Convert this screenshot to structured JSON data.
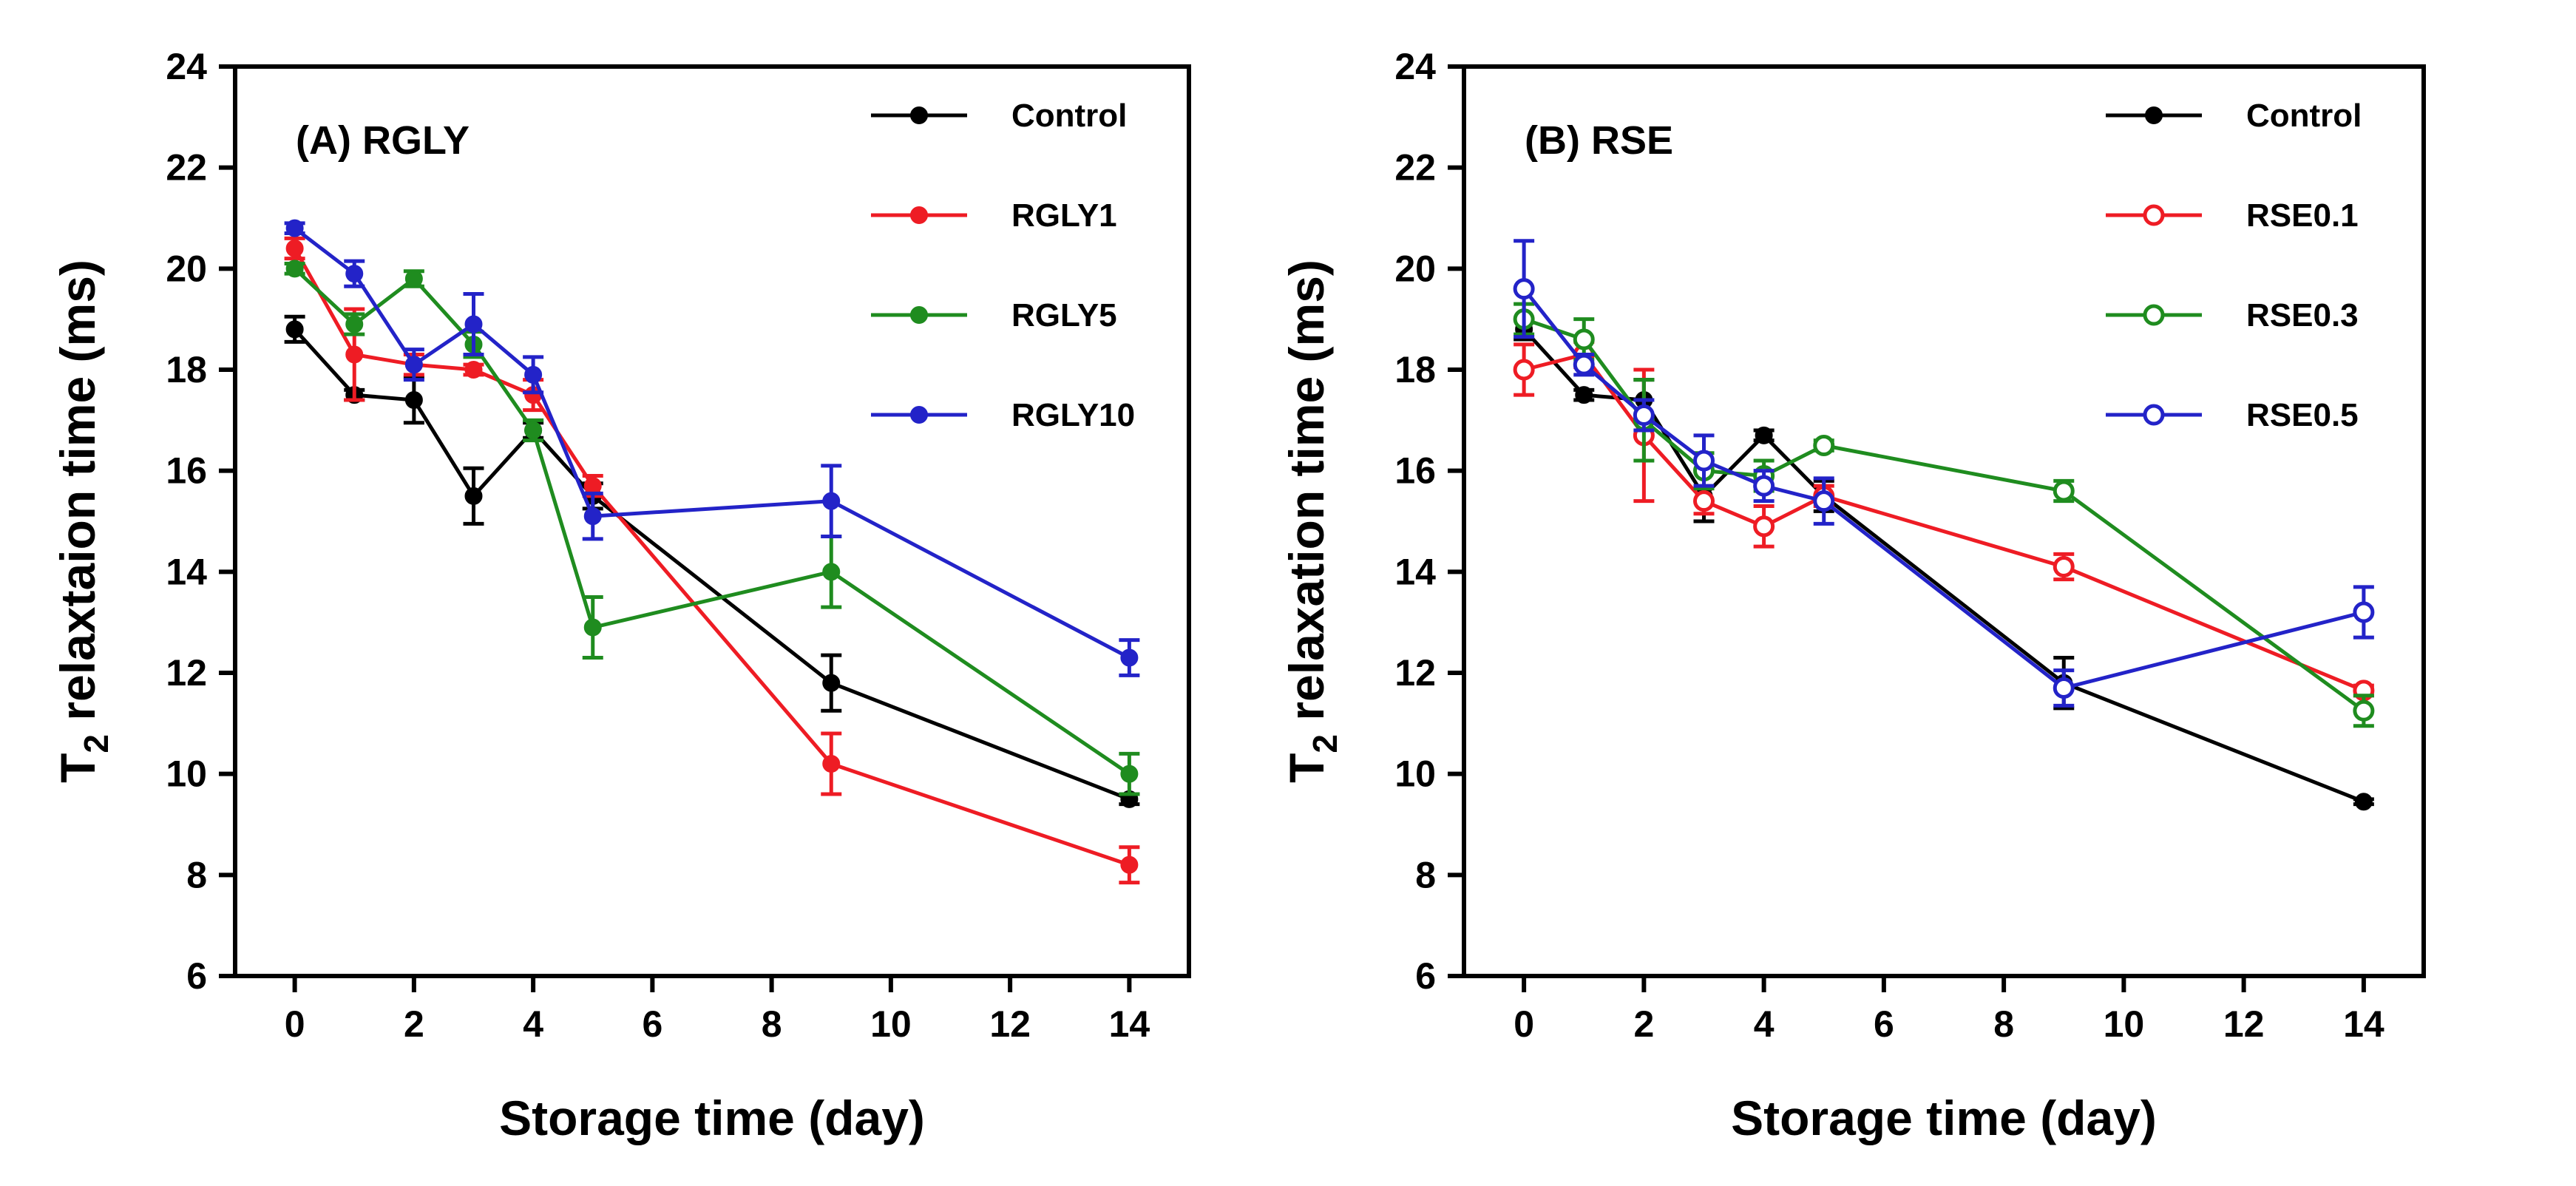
{
  "colors": {
    "axis": "#000000",
    "black": "#000000",
    "red": "#ee1c24",
    "green": "#1f8c1f",
    "blue": "#2323c8"
  },
  "chart_data": [
    {
      "id": "A",
      "type": "line",
      "title": "(A) RGLY",
      "xlabel": "Storage time (day)",
      "ylabel_main": "T",
      "ylabel_sub": "2",
      "ylabel_rest": " relaxtaion time (ms)",
      "xlim": [
        -1,
        15
      ],
      "ylim": [
        6,
        24
      ],
      "xticks": [
        0,
        2,
        4,
        6,
        8,
        10,
        12,
        14
      ],
      "yticks": [
        6,
        8,
        10,
        12,
        14,
        16,
        18,
        20,
        22,
        24
      ],
      "legend_position": "top-right",
      "x": [
        0,
        1,
        2,
        3,
        4,
        5,
        9,
        14
      ],
      "series": [
        {
          "name": "Control",
          "color": "#000000",
          "filled": true,
          "values": [
            18.8,
            17.5,
            17.4,
            15.5,
            16.8,
            15.5,
            11.8,
            9.5
          ],
          "errors": [
            0.25,
            0.1,
            0.45,
            0.55,
            0.15,
            0.25,
            0.55,
            0.1
          ]
        },
        {
          "name": "RGLY1",
          "color": "#ee1c24",
          "filled": true,
          "values": [
            20.4,
            18.3,
            18.1,
            18.0,
            17.5,
            15.7,
            10.2,
            8.2
          ],
          "errors": [
            0.2,
            0.9,
            0.2,
            0.1,
            0.3,
            0.2,
            0.6,
            0.35
          ]
        },
        {
          "name": "RGLY5",
          "color": "#1f8c1f",
          "filled": true,
          "values": [
            20.0,
            18.9,
            19.8,
            18.5,
            16.8,
            12.9,
            14.0,
            10.0
          ],
          "errors": [
            0.1,
            0.2,
            0.15,
            0.25,
            0.2,
            0.6,
            0.7,
            0.4
          ]
        },
        {
          "name": "RGLY10",
          "color": "#2323c8",
          "filled": true,
          "values": [
            20.8,
            19.9,
            18.1,
            18.9,
            17.9,
            15.1,
            15.4,
            12.3
          ],
          "errors": [
            0.1,
            0.25,
            0.3,
            0.6,
            0.35,
            0.45,
            0.7,
            0.35
          ]
        }
      ]
    },
    {
      "id": "B",
      "type": "line",
      "title": "(B) RSE",
      "xlabel": "Storage time (day)",
      "ylabel_main": "T",
      "ylabel_sub": "2",
      "ylabel_rest": " relaxation time (ms)",
      "xlim": [
        -1,
        15
      ],
      "ylim": [
        6,
        24
      ],
      "xticks": [
        0,
        2,
        4,
        6,
        8,
        10,
        12,
        14
      ],
      "yticks": [
        6,
        8,
        10,
        12,
        14,
        16,
        18,
        20,
        22,
        24
      ],
      "legend_position": "top-right",
      "x": [
        0,
        1,
        2,
        3,
        4,
        5,
        9,
        14
      ],
      "series": [
        {
          "name": "Control",
          "color": "#000000",
          "filled": true,
          "values": [
            18.8,
            17.5,
            17.4,
            15.5,
            16.7,
            15.5,
            11.8,
            9.45
          ],
          "errors": [
            0.2,
            0.1,
            0.4,
            0.5,
            0.1,
            0.3,
            0.5,
            0.05
          ]
        },
        {
          "name": "RSE0.1",
          "color": "#ee1c24",
          "filled": false,
          "values": [
            18.0,
            18.3,
            16.7,
            15.4,
            14.9,
            15.5,
            14.1,
            11.65
          ],
          "errors": [
            0.5,
            0.25,
            1.3,
            0.25,
            0.4,
            0.2,
            0.25,
            0.1
          ]
        },
        {
          "name": "RSE0.3",
          "color": "#1f8c1f",
          "filled": false,
          "values": [
            19.0,
            18.6,
            17.0,
            16.0,
            15.9,
            16.5,
            15.6,
            11.25
          ],
          "errors": [
            0.3,
            0.4,
            0.8,
            0.35,
            0.3,
            0.1,
            0.2,
            0.3
          ]
        },
        {
          "name": "RSE0.5",
          "color": "#2323c8",
          "filled": false,
          "values": [
            19.6,
            18.1,
            17.1,
            16.2,
            15.7,
            15.4,
            11.7,
            13.2
          ],
          "errors": [
            0.95,
            0.2,
            0.3,
            0.5,
            0.3,
            0.45,
            0.35,
            0.5
          ]
        }
      ]
    }
  ]
}
